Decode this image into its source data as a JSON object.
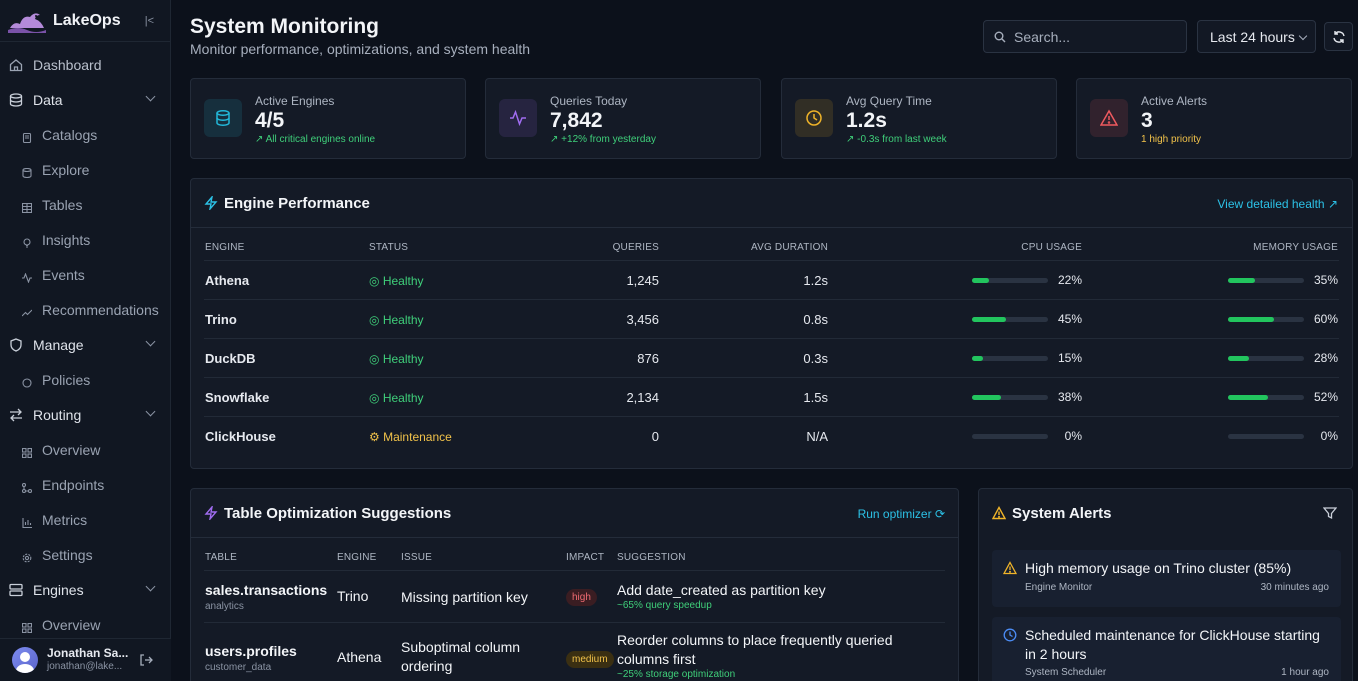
{
  "app": {
    "name": "LakeOps"
  },
  "sidebar": {
    "items": [
      {
        "label": "Dashboard",
        "icon": "home-icon",
        "kind": "top"
      },
      {
        "label": "Data",
        "icon": "database-icon",
        "kind": "group"
      },
      {
        "label": "Catalogs",
        "icon": "catalog-icon",
        "kind": "child"
      },
      {
        "label": "Explore",
        "icon": "explore-icon",
        "kind": "child"
      },
      {
        "label": "Tables",
        "icon": "table-icon",
        "kind": "child"
      },
      {
        "label": "Insights",
        "icon": "lightbulb-icon",
        "kind": "child"
      },
      {
        "label": "Events",
        "icon": "activity-icon",
        "kind": "child"
      },
      {
        "label": "Recommendations",
        "icon": "trend-icon",
        "kind": "child"
      },
      {
        "label": "Manage",
        "icon": "shield-icon",
        "kind": "group"
      },
      {
        "label": "Policies",
        "icon": "policy-icon",
        "kind": "child"
      },
      {
        "label": "Routing",
        "icon": "arrows-icon",
        "kind": "group"
      },
      {
        "label": "Overview",
        "icon": "grid-icon",
        "kind": "child"
      },
      {
        "label": "Endpoints",
        "icon": "endpoints-icon",
        "kind": "child"
      },
      {
        "label": "Metrics",
        "icon": "bar-chart-icon",
        "kind": "child"
      },
      {
        "label": "Settings",
        "icon": "gear-icon",
        "kind": "child"
      },
      {
        "label": "Engines",
        "icon": "server-icon",
        "kind": "group"
      },
      {
        "label": "Overview",
        "icon": "grid-icon",
        "kind": "child"
      }
    ]
  },
  "user": {
    "name": "Jonathan Sa...",
    "email": "jonathan@lake..."
  },
  "header": {
    "title": "System Monitoring",
    "subtitle": "Monitor performance, optimizations, and system health",
    "search_placeholder": "Search...",
    "time_range": "Last 24 hours"
  },
  "stats": [
    {
      "label": "Active Engines",
      "value": "4/5",
      "note": "All critical engines online",
      "color": "#22b8d9",
      "icon": "database-icon"
    },
    {
      "label": "Queries Today",
      "value": "7,842",
      "note": "+12% from yesterday",
      "color": "#a06cf0",
      "icon": "activity-icon"
    },
    {
      "label": "Avg Query Time",
      "value": "1.2s",
      "note": "-0.3s from last week",
      "color": "#f0b429",
      "icon": "clock-icon"
    },
    {
      "label": "Active Alerts",
      "value": "3",
      "note": "1 high priority",
      "color": "#ef5a5f",
      "icon": "alert-triangle-icon"
    }
  ],
  "engine_performance": {
    "title": "Engine Performance",
    "link": "View detailed health",
    "columns": [
      "ENGINE",
      "STATUS",
      "QUERIES",
      "AVG DURATION",
      "CPU USAGE",
      "MEMORY USAGE"
    ],
    "rows": [
      {
        "engine": "Athena",
        "status": "Healthy",
        "queries": "1,245",
        "duration": "1.2s",
        "cpu": 22,
        "cpu_label": "22%",
        "mem": 35,
        "mem_label": "35%"
      },
      {
        "engine": "Trino",
        "status": "Healthy",
        "queries": "3,456",
        "duration": "0.8s",
        "cpu": 45,
        "cpu_label": "45%",
        "mem": 60,
        "mem_label": "60%"
      },
      {
        "engine": "DuckDB",
        "status": "Healthy",
        "queries": "876",
        "duration": "0.3s",
        "cpu": 15,
        "cpu_label": "15%",
        "mem": 28,
        "mem_label": "28%"
      },
      {
        "engine": "Snowflake",
        "status": "Healthy",
        "queries": "2,134",
        "duration": "1.5s",
        "cpu": 38,
        "cpu_label": "38%",
        "mem": 52,
        "mem_label": "52%"
      },
      {
        "engine": "ClickHouse",
        "status": "Maintenance",
        "queries": "0",
        "duration": "N/A",
        "cpu": 0,
        "cpu_label": "0%",
        "mem": 0,
        "mem_label": "0%"
      }
    ]
  },
  "optimizations": {
    "title": "Table Optimization Suggestions",
    "link": "Run optimizer",
    "columns": [
      "TABLE",
      "ENGINE",
      "ISSUE",
      "IMPACT",
      "SUGGESTION"
    ],
    "rows": [
      {
        "table": "sales.transactions",
        "schema": "analytics",
        "engine": "Trino",
        "issue": "Missing partition key",
        "impact": "high",
        "suggestion": "Add date_created as partition key",
        "gain": "~65% query speedup"
      },
      {
        "table": "users.profiles",
        "schema": "customer_data",
        "engine": "Athena",
        "issue": "Suboptimal column ordering",
        "impact": "medium",
        "suggestion": "Reorder columns to place frequently queried columns first",
        "gain": "~25% storage optimization"
      }
    ]
  },
  "alerts": {
    "title": "System Alerts",
    "items": [
      {
        "title": "High memory usage on Trino cluster (85%)",
        "source": "Engine Monitor",
        "time": "30 minutes ago",
        "icon": "warning-icon",
        "color": "#f0b429"
      },
      {
        "title": "Scheduled maintenance for ClickHouse starting in 2 hours",
        "source": "System Scheduler",
        "time": "1 hour ago",
        "icon": "clock-icon",
        "color": "#4c8df6"
      }
    ]
  }
}
